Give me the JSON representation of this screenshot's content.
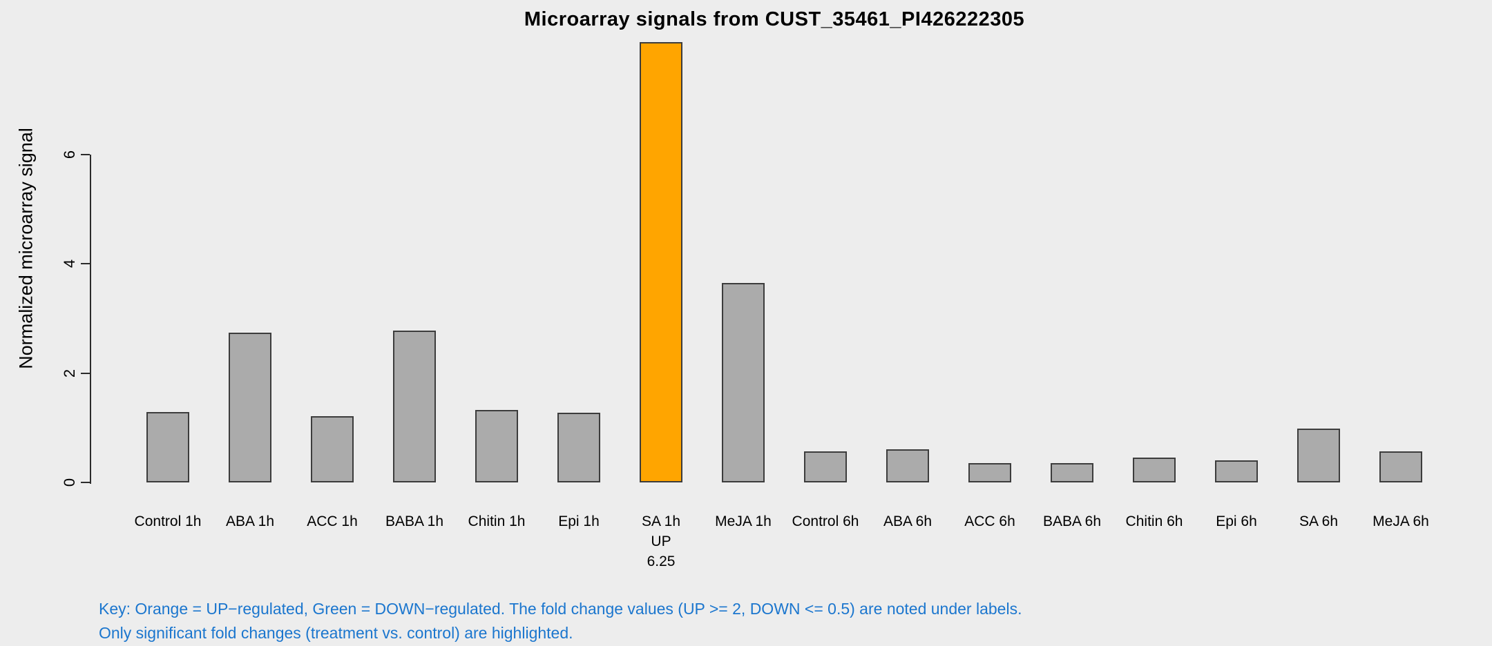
{
  "title": "Microarray signals from CUST_35461_PI426222305",
  "chart_data": {
    "type": "bar",
    "title": "Microarray signals from CUST_35461_PI426222305",
    "xlabel": "",
    "ylabel": "Normalized microarray signal",
    "yticks": [
      0,
      2,
      4,
      6
    ],
    "ylim": [
      0,
      8.3
    ],
    "grid": "off",
    "legend_position": "none",
    "categories": [
      "Control 1h",
      "ABA 1h",
      "ACC 1h",
      "BABA 1h",
      "Chitin 1h",
      "Epi 1h",
      "SA 1h",
      "MeJA 1h",
      "Control 6h",
      "ABA 6h",
      "ACC 6h",
      "BABA 6h",
      "Chitin 6h",
      "Epi 6h",
      "SA 6h",
      "MeJA 6h"
    ],
    "values": [
      1.29,
      2.74,
      1.21,
      2.78,
      1.33,
      1.28,
      8.06,
      3.65,
      0.57,
      0.61,
      0.35,
      0.35,
      0.45,
      0.41,
      0.98,
      0.57
    ],
    "default_bar_color": "#ABABAB",
    "bar_border_color": "#3C3C3C",
    "highlights": [
      {
        "index": 6,
        "color": "#FFA500",
        "direction": "UP",
        "fold_change": "6.25"
      }
    ],
    "annotations": [
      {
        "index": 6,
        "lines": [
          "UP",
          "6.25"
        ]
      }
    ]
  },
  "footer": {
    "line1": "Key: Orange = UP−regulated, Green = DOWN−regulated. The fold change values (UP >= 2, DOWN <= 0.5) are noted under labels.",
    "line2": "Only significant fold changes (treatment vs. control) are highlighted.",
    "color": "#1B76CE"
  },
  "colors": {
    "background": "#EDEDED",
    "bar_gray": "#ABABAB",
    "bar_border": "#3C3C3C",
    "up_orange": "#FFA500",
    "axis_black": "#2B2B2B",
    "key_blue": "#1B76CE"
  }
}
